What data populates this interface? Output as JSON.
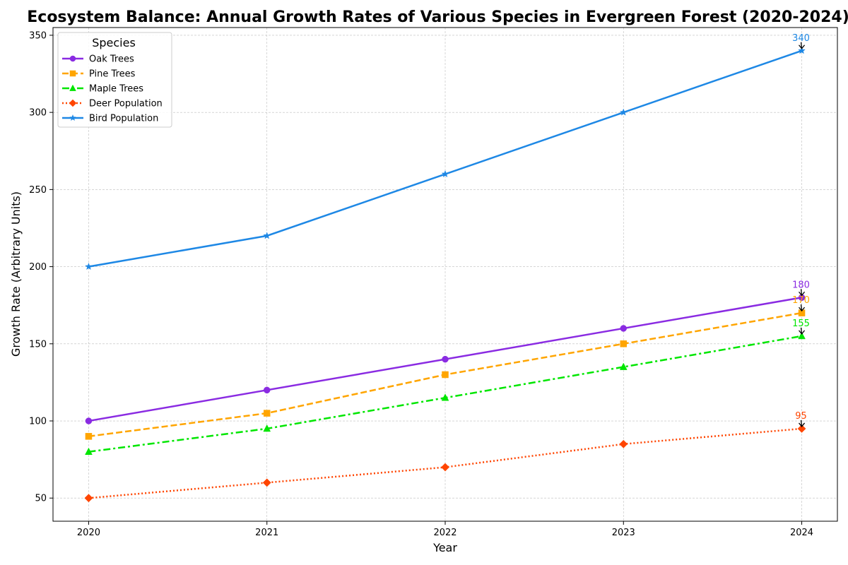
{
  "chart_data": {
    "type": "line",
    "title": "Ecosystem Balance: Annual Growth Rates of Various Species in Evergreen Forest (2020-2024)",
    "xlabel": "Year",
    "ylabel": "Growth Rate (Arbitrary Units)",
    "x": [
      2020,
      2021,
      2022,
      2023,
      2024
    ],
    "x_ticks": [
      "2020",
      "2021",
      "2022",
      "2023",
      "2024"
    ],
    "y_ticks": [
      50,
      100,
      150,
      200,
      250,
      300,
      350
    ],
    "ylim": [
      35,
      355
    ],
    "xlim": [
      2019.8,
      2024.2
    ],
    "grid": true,
    "legend": {
      "title": "Species",
      "placement": "top-left"
    },
    "series": [
      {
        "name": "Oak Trees",
        "values": [
          100,
          120,
          140,
          160,
          180
        ],
        "color": "#8A2BE2",
        "marker": "circle",
        "dash": "solid",
        "annotation": "180"
      },
      {
        "name": "Pine Trees",
        "values": [
          90,
          105,
          130,
          150,
          170
        ],
        "color": "#FFA500",
        "marker": "square",
        "dash": "dashed",
        "annotation": "170"
      },
      {
        "name": "Maple Trees",
        "values": [
          80,
          95,
          115,
          135,
          155
        ],
        "color": "#00E600",
        "marker": "triangle",
        "dash": "dashdot",
        "annotation": "155"
      },
      {
        "name": "Deer Population",
        "values": [
          50,
          60,
          70,
          85,
          95
        ],
        "color": "#FF4500",
        "marker": "diamond",
        "dash": "dotted",
        "annotation": "95"
      },
      {
        "name": "Bird Population",
        "values": [
          200,
          220,
          260,
          300,
          340
        ],
        "color": "#1E88E5",
        "marker": "star",
        "dash": "solid",
        "annotation": "340"
      }
    ]
  }
}
